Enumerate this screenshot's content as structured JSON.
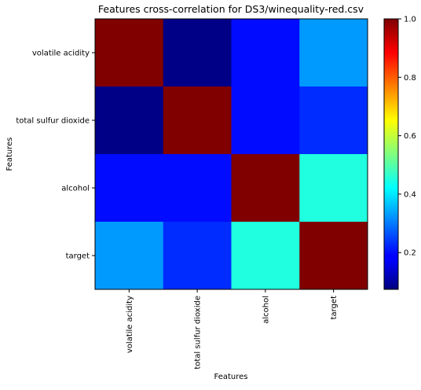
{
  "chart_data": {
    "type": "heatmap",
    "title": "Features cross-correlation for DS3/winequality-red.csv",
    "xlabel": "Features",
    "ylabel": "Features",
    "rows": [
      "volatile acidity",
      "total sulfur dioxide",
      "alcohol",
      "target"
    ],
    "columns": [
      "volatile acidity",
      "total sulfur dioxide",
      "alcohol",
      "target"
    ],
    "values": [
      [
        1.0,
        0.08,
        0.2,
        0.33
      ],
      [
        0.08,
        1.0,
        0.2,
        0.23
      ],
      [
        0.2,
        0.2,
        1.0,
        0.45
      ],
      [
        0.33,
        0.23,
        0.45,
        1.0
      ]
    ],
    "colormap": "jet",
    "colorbar": {
      "min": 0.074,
      "max": 1.0,
      "ticks": [
        0.2,
        0.4,
        0.6,
        0.8,
        1.0
      ],
      "tick_labels": [
        "0.2",
        "0.4",
        "0.6",
        "0.8",
        "1.0"
      ]
    }
  }
}
